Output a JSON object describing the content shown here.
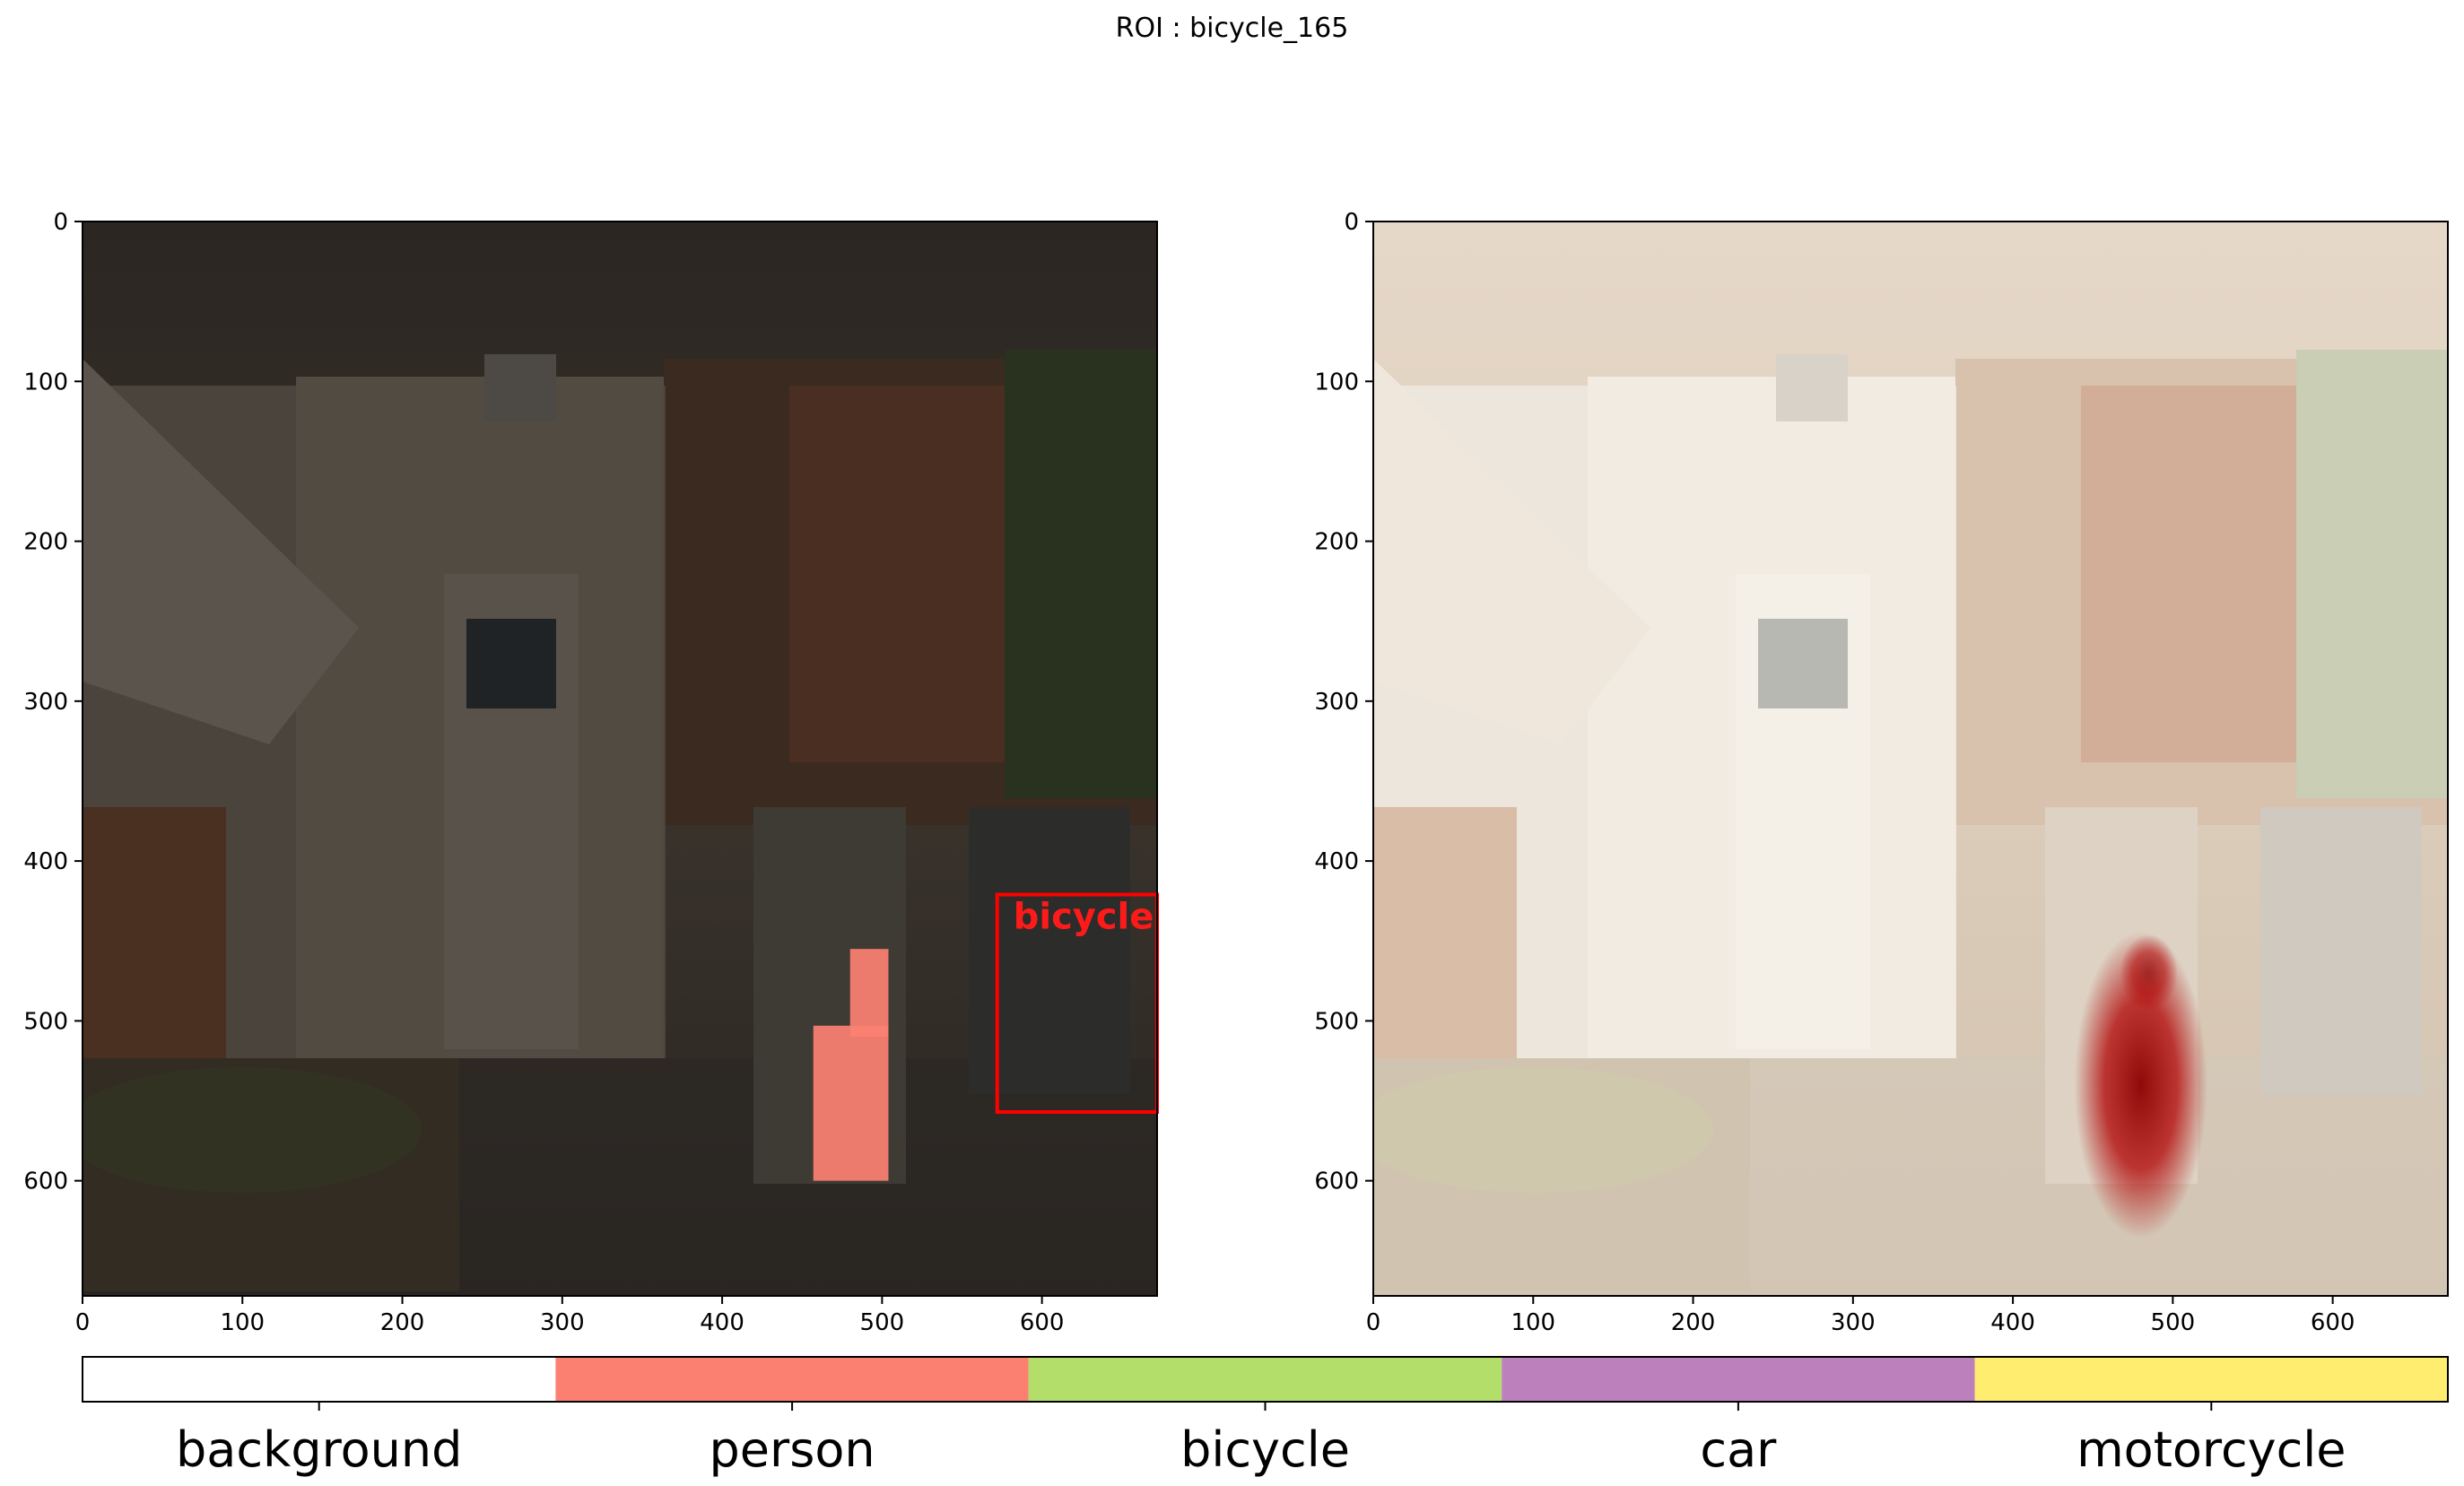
{
  "figure_title": "ROI : bicycle_165",
  "colors": {
    "background": "#ffffff",
    "person": "#fb8072",
    "bicycle": "#b3de69",
    "car": "#bc80bd",
    "motorcycle": "#ffed6f",
    "detection_box": "#ff0000",
    "heatmap_peak": "#b00000"
  },
  "chart_data": [
    {
      "type": "image",
      "panel": "left",
      "content": "photo of food truck scene with segmentation mask overlay",
      "xlim": [
        0,
        672
      ],
      "ylim": [
        672,
        0
      ],
      "x_ticks": [
        0,
        100,
        200,
        300,
        400,
        500,
        600
      ],
      "y_ticks": [
        0,
        100,
        200,
        300,
        400,
        500,
        600
      ],
      "detection_boxes": [
        {
          "label": "bicycle",
          "x0": 572,
          "y0": 421,
          "x1": 672,
          "y1": 557
        }
      ],
      "mask_regions": [
        {
          "class": "person",
          "x0": 457,
          "y0": 503,
          "x1": 504,
          "y1": 600
        },
        {
          "class": "person",
          "x0": 480,
          "y0": 455,
          "x1": 504,
          "y1": 510
        }
      ]
    },
    {
      "type": "image",
      "panel": "right",
      "content": "same photo with saliency heatmap overlay",
      "xlim": [
        0,
        672
      ],
      "ylim": [
        672,
        0
      ],
      "x_ticks": [
        0,
        100,
        200,
        300,
        400,
        500,
        600
      ],
      "y_ticks": [
        0,
        100,
        200,
        300,
        400,
        500,
        600
      ],
      "heatmap_peaks": [
        {
          "cx": 480,
          "cy": 540,
          "rx": 32,
          "ry": 80,
          "intensity": 1.0
        },
        {
          "cx": 485,
          "cy": 470,
          "rx": 14,
          "ry": 20,
          "intensity": 0.7
        }
      ]
    }
  ],
  "legend": [
    {
      "label": "background",
      "color": "#ffffff"
    },
    {
      "label": "person",
      "color": "#fb8072"
    },
    {
      "label": "bicycle",
      "color": "#b3de69"
    },
    {
      "label": "car",
      "color": "#bc80bd"
    },
    {
      "label": "motorcycle",
      "color": "#ffed6f"
    }
  ]
}
